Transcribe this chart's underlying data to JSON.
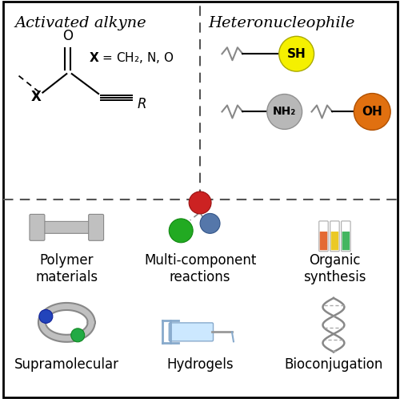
{
  "background_color": "#ffffff",
  "border_color": "#000000",
  "dashed_line_color": "#555555",
  "top_left_title": "Activated alkyne",
  "top_right_title": "Heteronucleophile",
  "bottom_labels": [
    [
      "Polymer\nmaterials",
      "Multi-component\nreactions",
      "Organic\nsynthesis"
    ],
    [
      "Supramolecular",
      "Hydrogels",
      "Bioconjugation"
    ]
  ],
  "label_fontsize": 12,
  "title_fontsize": 14,
  "chem_fontsize": 11,
  "sh_sphere_color": "#f5f000",
  "nh2_sphere_color": "#b8b8b8",
  "oh_sphere_color": "#e07010"
}
